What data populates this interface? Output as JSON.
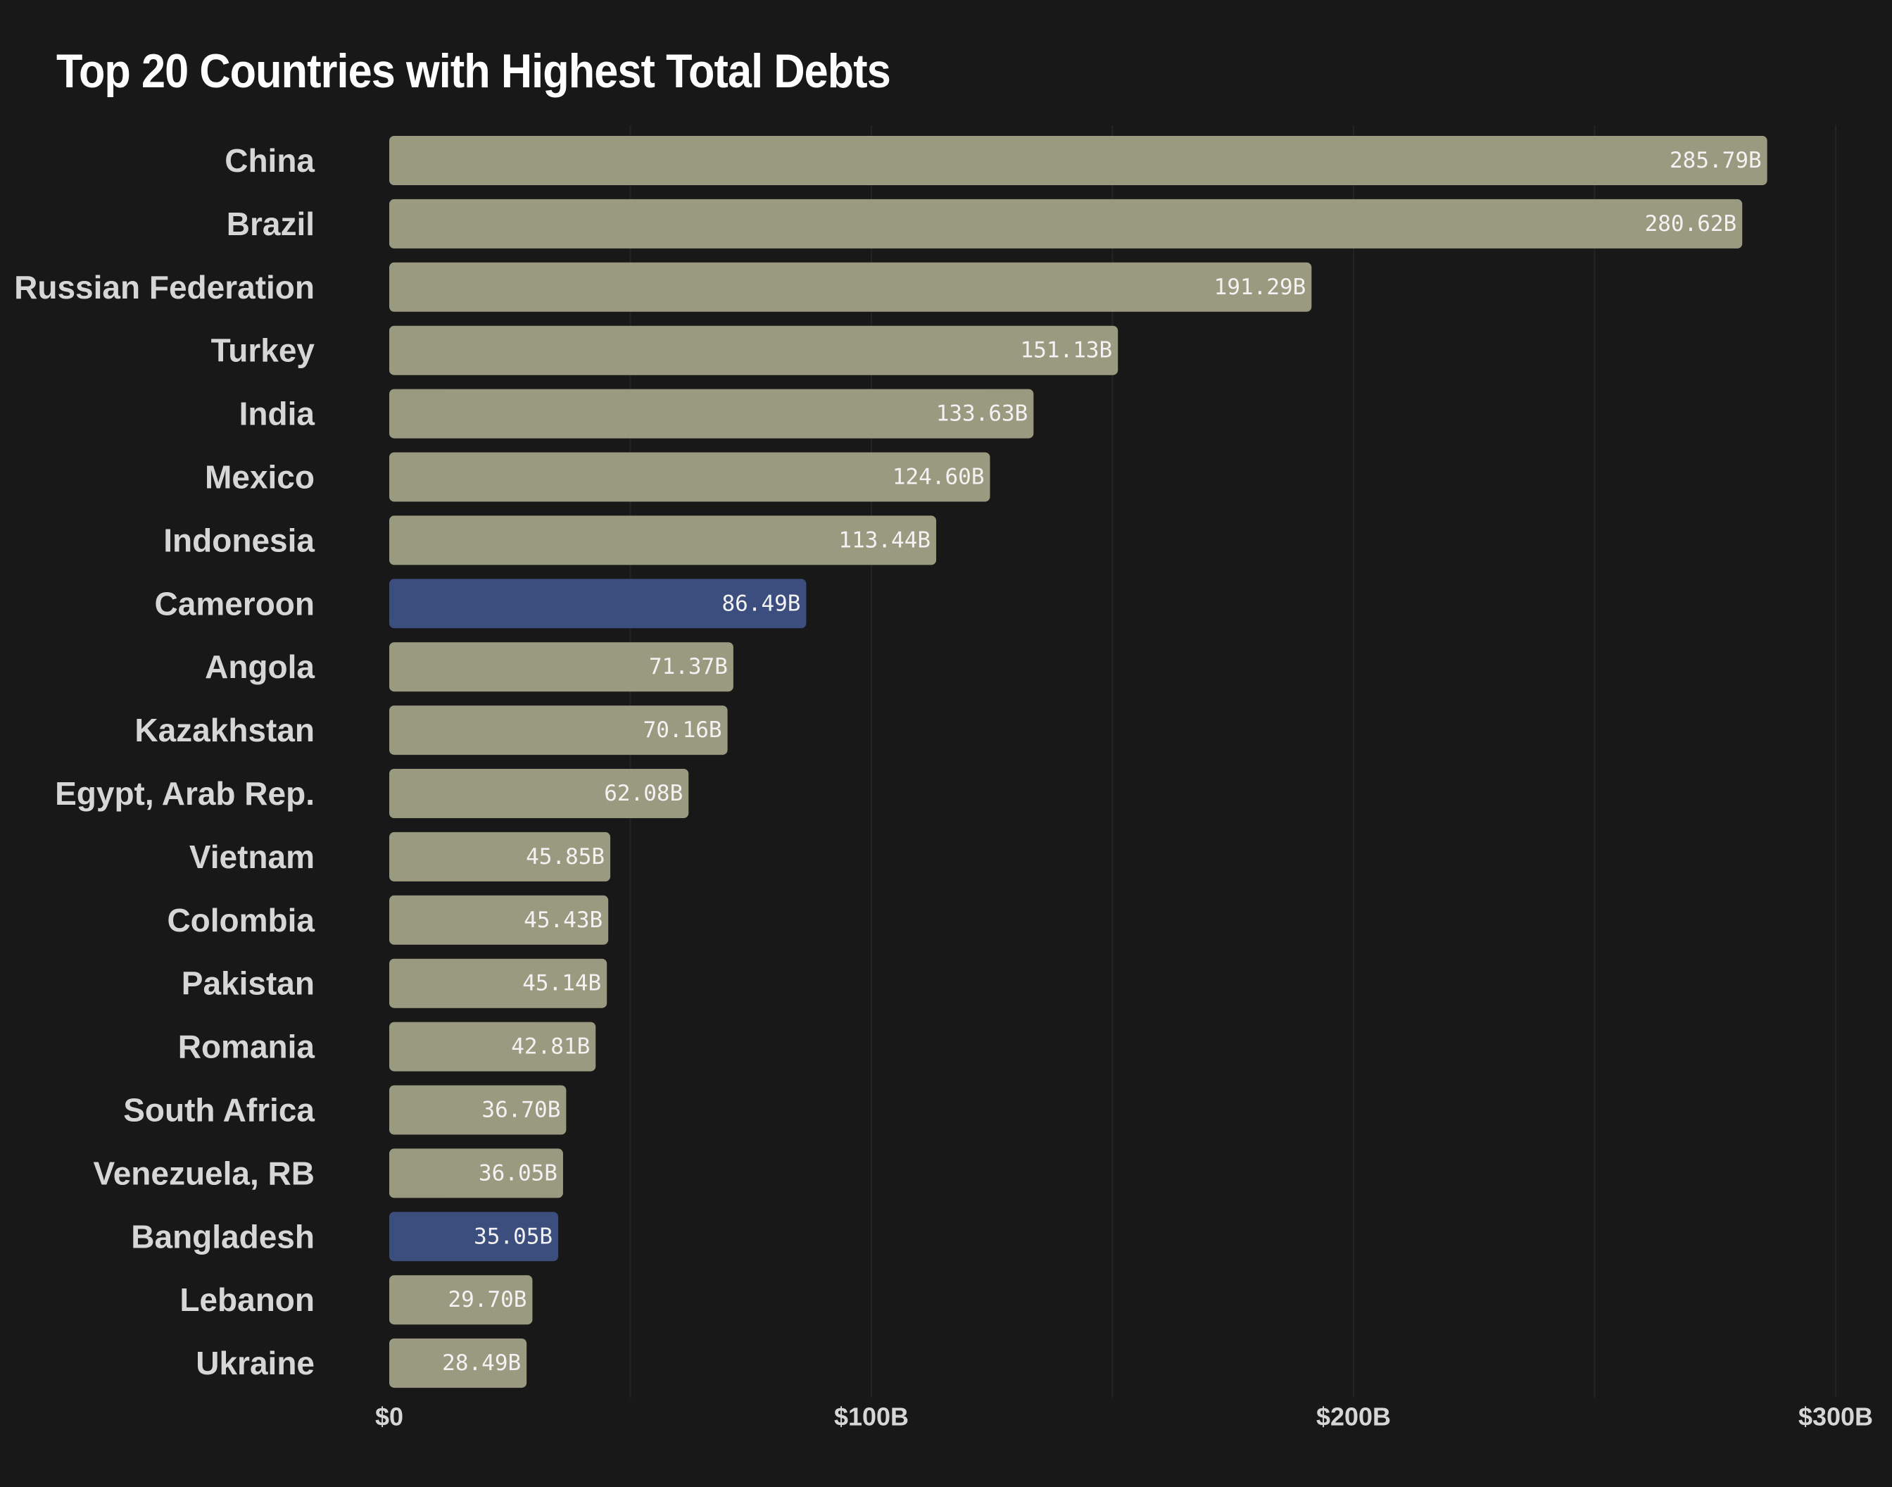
{
  "chart_data": {
    "type": "bar",
    "orientation": "horizontal",
    "title": "Top 20 Countries with Highest Total Debts",
    "xlabel": "",
    "ylabel": "",
    "xlim": [
      0,
      300
    ],
    "x_ticks": [
      0,
      100,
      200,
      300
    ],
    "x_tick_labels": [
      "$0",
      "$100B",
      "$200B",
      "$300B"
    ],
    "grid": true,
    "colors": {
      "default": "#9a9a80",
      "highlight": "#3c4e7e",
      "background": "#181818"
    },
    "categories": [
      "China",
      "Brazil",
      "Russian Federation",
      "Turkey",
      "India",
      "Mexico",
      "Indonesia",
      "Cameroon",
      "Angola",
      "Kazakhstan",
      "Egypt, Arab Rep.",
      "Vietnam",
      "Colombia",
      "Pakistan",
      "Romania",
      "South Africa",
      "Venezuela, RB",
      "Bangladesh",
      "Lebanon",
      "Ukraine"
    ],
    "values": [
      285.79,
      280.62,
      191.29,
      151.13,
      133.63,
      124.6,
      113.44,
      86.49,
      71.37,
      70.16,
      62.08,
      45.85,
      45.43,
      45.14,
      42.81,
      36.7,
      36.05,
      35.05,
      29.7,
      28.49
    ],
    "value_labels": [
      "285.79B",
      "280.62B",
      "191.29B",
      "151.13B",
      "133.63B",
      "124.60B",
      "113.44B",
      "86.49B",
      "71.37B",
      "70.16B",
      "62.08B",
      "45.85B",
      "45.43B",
      "45.14B",
      "42.81B",
      "36.70B",
      "36.05B",
      "35.05B",
      "29.70B",
      "28.49B"
    ],
    "highlighted": [
      "Cameroon",
      "Bangladesh"
    ]
  }
}
